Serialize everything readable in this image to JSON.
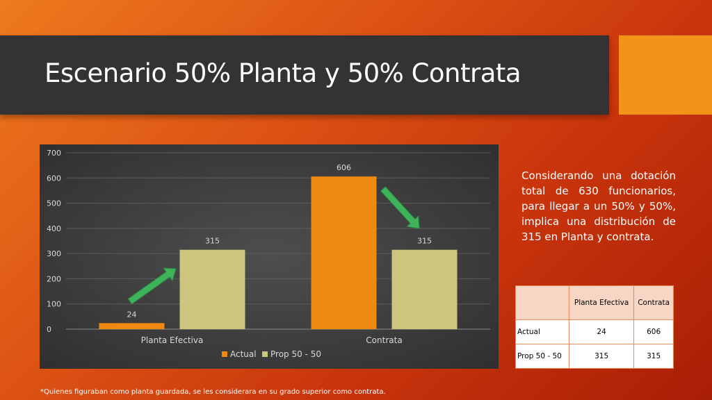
{
  "slide": {
    "title": "Escenario 50% Planta y 50% Contrata",
    "note": "Considerando una dotación total de 630 funcionarios, para llegar a un 50% y 50%, implica una distribución de 315 en Planta y contrata.",
    "footnote": "*Quienes figuraban como planta guardada, se les considerara en su grado superior como contrata."
  },
  "chart_data": {
    "type": "bar",
    "categories": [
      "Planta Efectiva",
      "Contrata"
    ],
    "series": [
      {
        "name": "Actual",
        "values": [
          24,
          606
        ],
        "color": "#f0890f"
      },
      {
        "name": "Prop 50 - 50",
        "values": [
          315,
          315
        ],
        "color": "#cdc57e"
      }
    ],
    "ylim": [
      0,
      700
    ],
    "yticks": [
      0,
      100,
      200,
      300,
      400,
      500,
      600,
      700
    ],
    "grid": true,
    "legend": "bottom",
    "annotations": [
      "green-arrow-up",
      "green-arrow-down"
    ]
  },
  "table": {
    "columns": [
      "",
      "Planta Efectiva",
      "Contrata"
    ],
    "rows": [
      {
        "label": "Actual",
        "values": [
          "24",
          "606"
        ]
      },
      {
        "label": "Prop 50 - 50",
        "values": [
          "315",
          "315"
        ]
      }
    ]
  }
}
